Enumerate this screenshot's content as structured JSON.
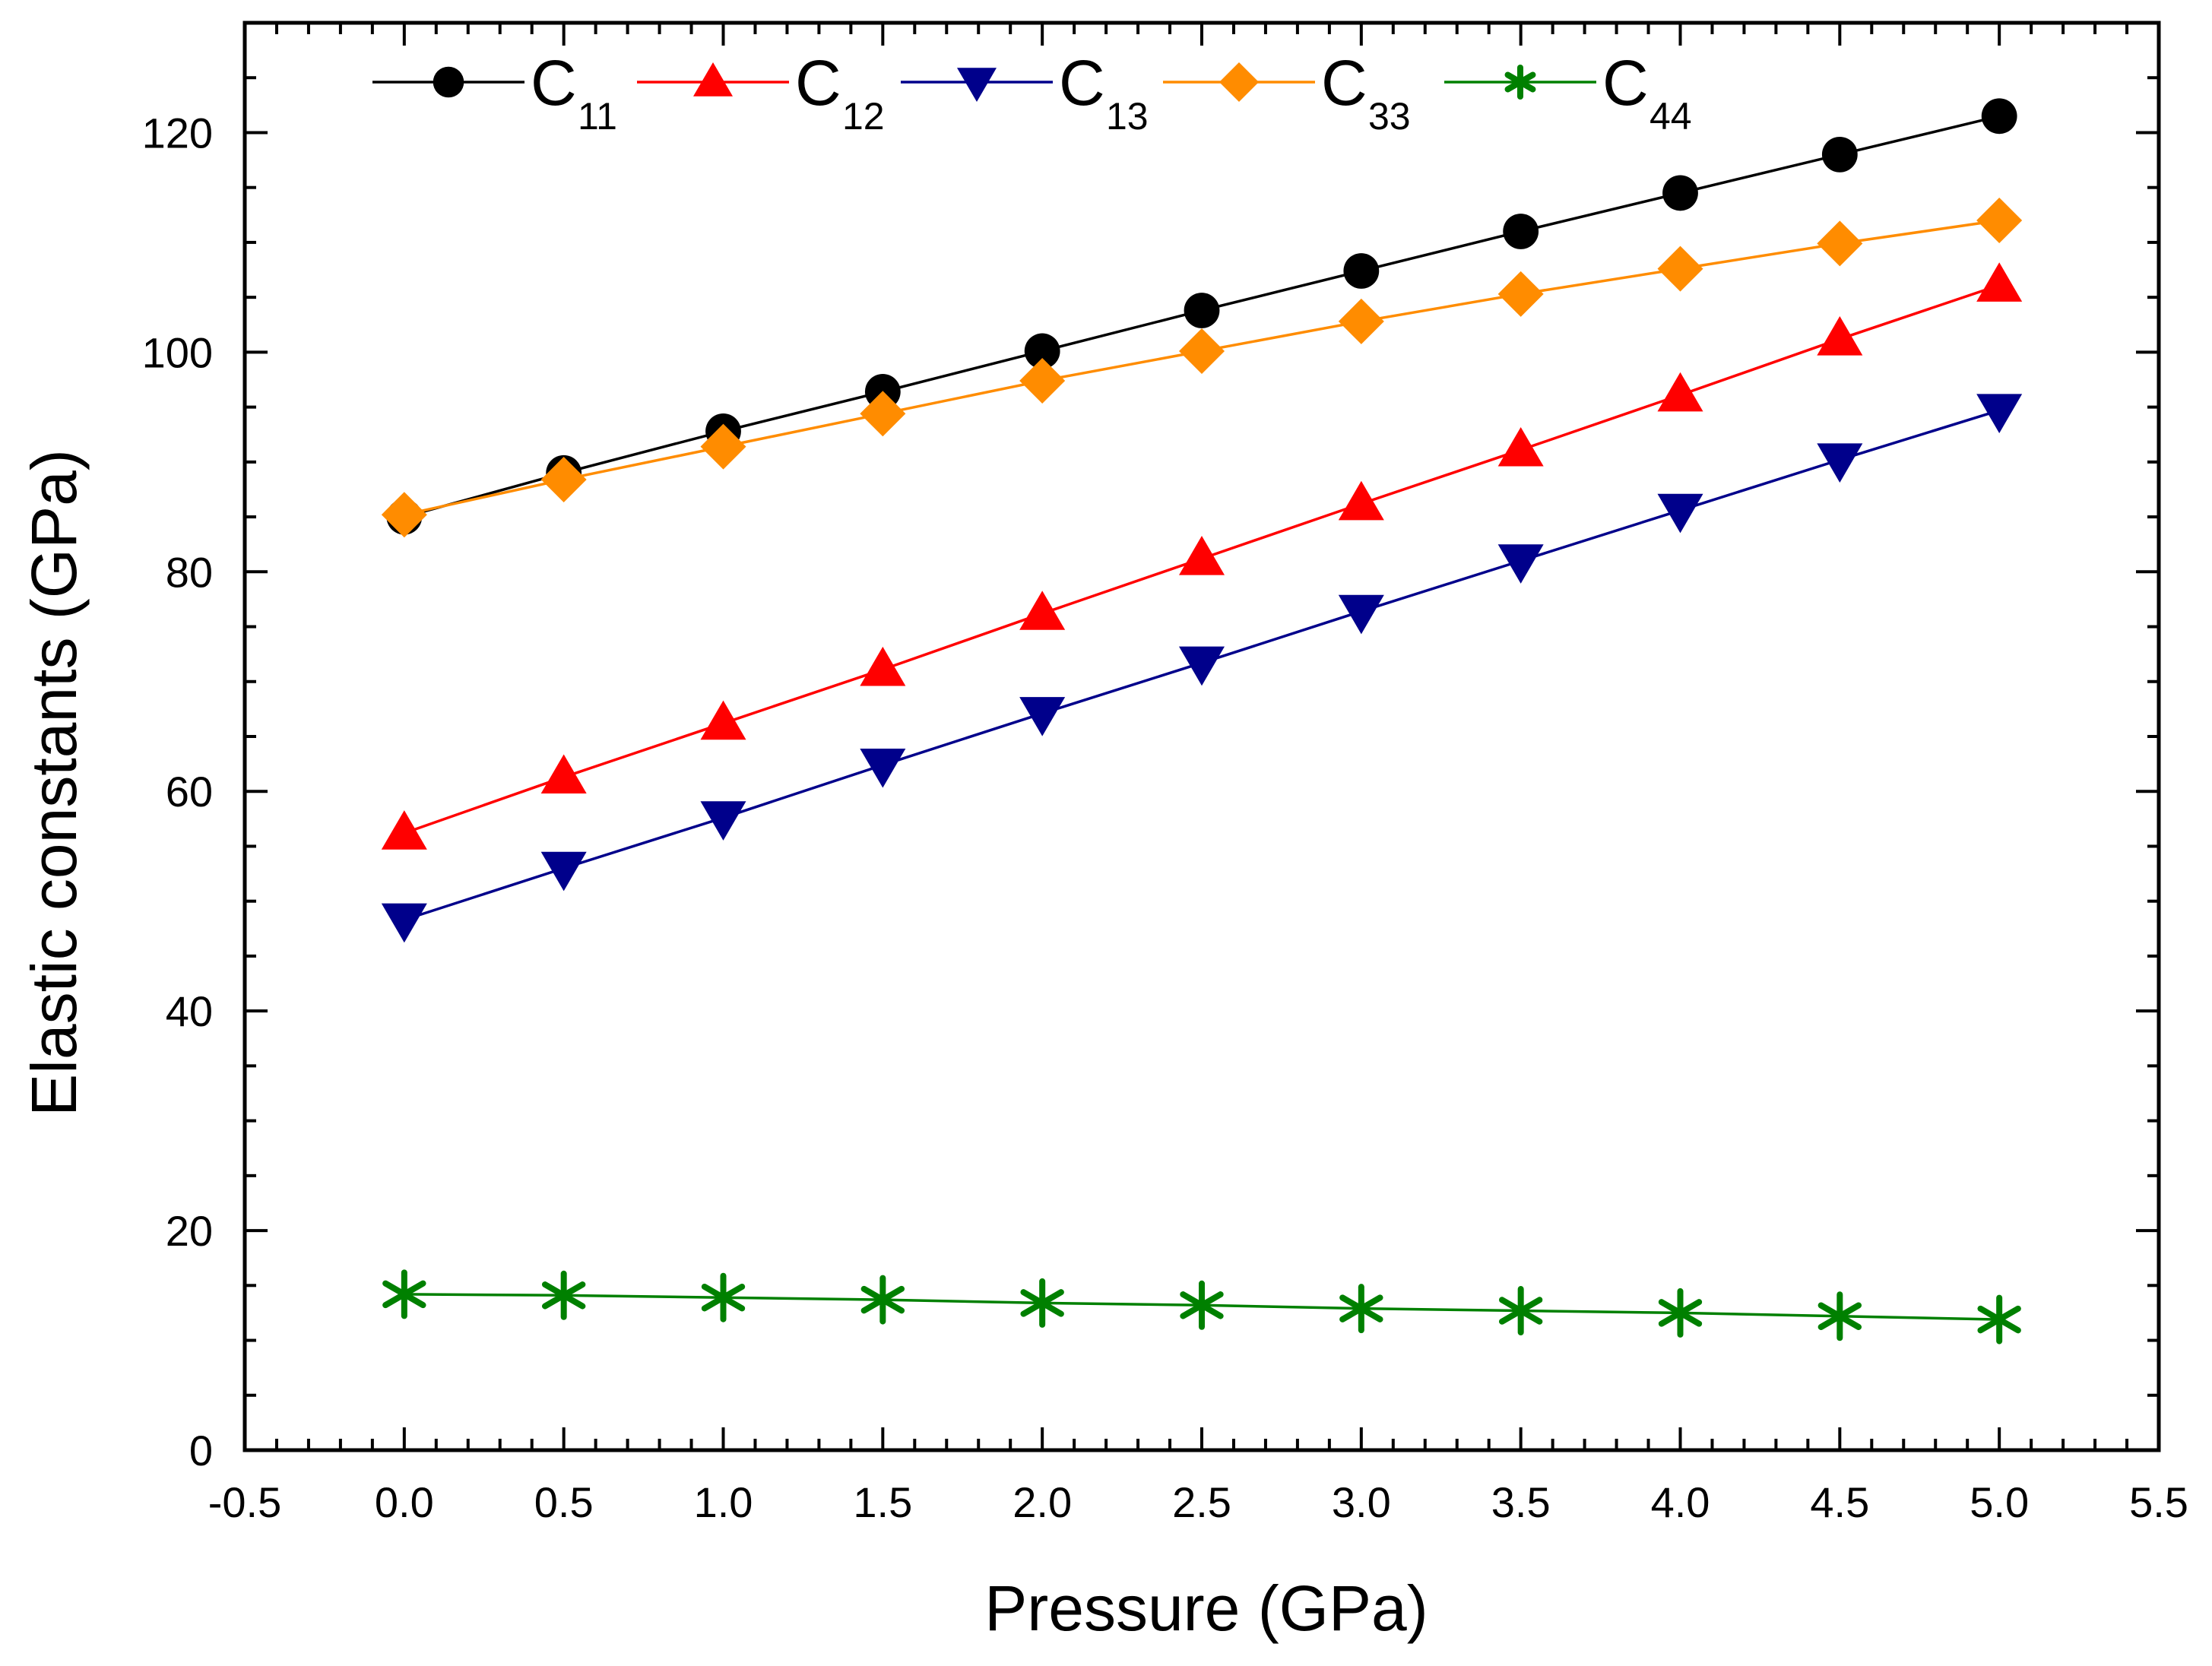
{
  "chart_data": {
    "type": "line",
    "xlabel": "Pressure (GPa)",
    "ylabel": "Elastic constants (GPa)",
    "xlim": [
      -0.5,
      5.5
    ],
    "ylim": [
      0,
      130
    ],
    "x_ticks": [
      "-0.5",
      "0.0",
      "0.5",
      "1.0",
      "1.5",
      "2.0",
      "2.5",
      "3.0",
      "3.5",
      "4.0",
      "4.5",
      "5.0",
      "5.5"
    ],
    "y_ticks": [
      "0",
      "20",
      "40",
      "60",
      "80",
      "100",
      "120"
    ],
    "grid": false,
    "legend_position": "top",
    "x": [
      0.0,
      0.5,
      1.0,
      1.5,
      2.0,
      2.5,
      3.0,
      3.5,
      4.0,
      4.5,
      5.0
    ],
    "series": [
      {
        "name": "C",
        "sub": "11",
        "color": "#000000",
        "marker": "circle",
        "values": [
          85.0,
          89.0,
          92.8,
          96.4,
          100.1,
          103.8,
          107.4,
          111.0,
          114.5,
          118.0,
          121.5
        ]
      },
      {
        "name": "C",
        "sub": "12",
        "color": "#ff0000",
        "marker": "triangle-up",
        "values": [
          56.2,
          61.3,
          66.2,
          71.1,
          76.2,
          81.2,
          86.2,
          91.1,
          96.1,
          101.2,
          106.1
        ]
      },
      {
        "name": "C",
        "sub": "13",
        "color": "#00008b",
        "marker": "triangle-down",
        "values": [
          48.3,
          53.0,
          57.6,
          62.4,
          67.1,
          71.7,
          76.4,
          81.0,
          85.6,
          90.2,
          94.7
        ]
      },
      {
        "name": "C",
        "sub": "33",
        "color": "#ff8c00",
        "marker": "diamond",
        "values": [
          85.2,
          88.4,
          91.4,
          94.4,
          97.4,
          100.1,
          102.8,
          105.3,
          107.6,
          109.9,
          112.0
        ]
      },
      {
        "name": "C",
        "sub": "44",
        "color": "#008000",
        "marker": "asterisk",
        "values": [
          14.2,
          14.1,
          13.9,
          13.7,
          13.4,
          13.2,
          12.9,
          12.7,
          12.5,
          12.2,
          11.9
        ]
      }
    ]
  }
}
